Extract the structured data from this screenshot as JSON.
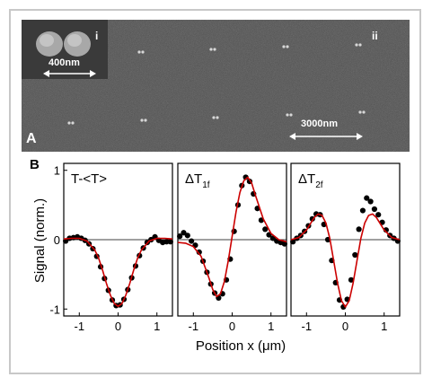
{
  "figure": {
    "panel_a": {
      "label": "A",
      "inset_label": "i",
      "main_label": "ii",
      "inset_scale": "400nm",
      "main_scale": "3000nm"
    },
    "panel_b": {
      "label": "B"
    }
  },
  "chart_data": [
    {
      "type": "line",
      "subplot_title": "T-<T>",
      "ylabel": "Signal (norm.)",
      "xlabel": "Position x (μm)",
      "xlim": [
        -1.4,
        1.4
      ],
      "ylim": [
        -1.1,
        1.1
      ],
      "xticks": [
        -1,
        0,
        1
      ],
      "yticks": [
        -1,
        0,
        1
      ],
      "colors": {
        "points": "#000000",
        "fit": "#cc0000"
      },
      "series": [
        {
          "kind": "points",
          "x": [
            -1.35,
            -1.25,
            -1.15,
            -1.05,
            -0.95,
            -0.85,
            -0.75,
            -0.65,
            -0.55,
            -0.45,
            -0.35,
            -0.25,
            -0.15,
            -0.05,
            0.05,
            0.15,
            0.25,
            0.35,
            0.45,
            0.55,
            0.65,
            0.75,
            0.85,
            0.95,
            1.05,
            1.15,
            1.25,
            1.35
          ],
          "y": [
            -0.02,
            0.02,
            0.03,
            0.04,
            0.02,
            -0.01,
            -0.06,
            -0.13,
            -0.24,
            -0.39,
            -0.56,
            -0.73,
            -0.87,
            -0.95,
            -0.94,
            -0.86,
            -0.72,
            -0.55,
            -0.38,
            -0.23,
            -0.12,
            -0.04,
            0.0,
            0.04,
            -0.01,
            -0.04,
            -0.03,
            -0.03
          ]
        },
        {
          "kind": "fit",
          "x": [
            -1.4,
            -1.2,
            -1.0,
            -0.8,
            -0.6,
            -0.5,
            -0.4,
            -0.3,
            -0.2,
            -0.1,
            0.0,
            0.1,
            0.2,
            0.3,
            0.4,
            0.5,
            0.6,
            0.8,
            1.0,
            1.2,
            1.4
          ],
          "y": [
            0.01,
            0.02,
            0.02,
            -0.02,
            -0.15,
            -0.27,
            -0.44,
            -0.63,
            -0.8,
            -0.92,
            -0.96,
            -0.92,
            -0.8,
            -0.63,
            -0.44,
            -0.27,
            -0.15,
            -0.02,
            0.02,
            0.02,
            0.01
          ]
        }
      ]
    },
    {
      "type": "line",
      "subplot_title": "ΔT",
      "subplot_title_sub": "1f",
      "xlim": [
        -1.4,
        1.4
      ],
      "ylim": [
        -1.1,
        1.1
      ],
      "xticks": [
        -1,
        0,
        1
      ],
      "colors": {
        "points": "#000000",
        "fit": "#cc0000"
      },
      "series": [
        {
          "kind": "points",
          "x": [
            -1.35,
            -1.25,
            -1.15,
            -1.05,
            -0.95,
            -0.85,
            -0.75,
            -0.65,
            -0.55,
            -0.45,
            -0.35,
            -0.25,
            -0.15,
            -0.05,
            0.05,
            0.15,
            0.25,
            0.35,
            0.45,
            0.55,
            0.65,
            0.75,
            0.85,
            0.95,
            1.05,
            1.15,
            1.25,
            1.35
          ],
          "y": [
            0.05,
            0.1,
            0.06,
            -0.02,
            -0.08,
            -0.18,
            -0.31,
            -0.47,
            -0.64,
            -0.77,
            -0.84,
            -0.78,
            -0.58,
            -0.28,
            0.12,
            0.5,
            0.78,
            0.9,
            0.84,
            0.66,
            0.45,
            0.28,
            0.15,
            0.07,
            0.02,
            -0.02,
            -0.04,
            -0.06
          ]
        },
        {
          "kind": "fit",
          "x": [
            -1.4,
            -1.2,
            -1.0,
            -0.8,
            -0.6,
            -0.5,
            -0.4,
            -0.3,
            -0.2,
            -0.1,
            0.0,
            0.1,
            0.2,
            0.3,
            0.4,
            0.5,
            0.6,
            0.8,
            1.0,
            1.2,
            1.4
          ],
          "y": [
            -0.04,
            -0.05,
            -0.1,
            -0.24,
            -0.55,
            -0.72,
            -0.82,
            -0.78,
            -0.6,
            -0.3,
            0.05,
            0.4,
            0.68,
            0.85,
            0.9,
            0.82,
            0.64,
            0.3,
            0.09,
            0.0,
            -0.03
          ]
        }
      ]
    },
    {
      "type": "line",
      "subplot_title": "ΔT",
      "subplot_title_sub": "2f",
      "xlim": [
        -1.4,
        1.4
      ],
      "ylim": [
        -1.1,
        1.1
      ],
      "xticks": [
        -1,
        0,
        1
      ],
      "colors": {
        "points": "#000000",
        "fit": "#cc0000"
      },
      "series": [
        {
          "kind": "points",
          "x": [
            -1.35,
            -1.25,
            -1.15,
            -1.05,
            -0.95,
            -0.85,
            -0.75,
            -0.65,
            -0.55,
            -0.45,
            -0.35,
            -0.25,
            -0.15,
            -0.05,
            0.05,
            0.15,
            0.25,
            0.35,
            0.45,
            0.55,
            0.65,
            0.75,
            0.85,
            0.95,
            1.05,
            1.15,
            1.25,
            1.35
          ],
          "y": [
            -0.03,
            0.02,
            0.06,
            0.12,
            0.2,
            0.3,
            0.37,
            0.36,
            0.22,
            0.0,
            -0.3,
            -0.62,
            -0.87,
            -0.97,
            -0.86,
            -0.58,
            -0.22,
            0.15,
            0.42,
            0.6,
            0.55,
            0.44,
            0.36,
            0.25,
            0.14,
            0.06,
            0.02,
            -0.02
          ]
        },
        {
          "kind": "fit",
          "x": [
            -1.4,
            -1.2,
            -1.0,
            -0.8,
            -0.7,
            -0.6,
            -0.5,
            -0.4,
            -0.3,
            -0.2,
            -0.1,
            0.0,
            0.1,
            0.2,
            0.3,
            0.4,
            0.5,
            0.6,
            0.7,
            0.8,
            1.0,
            1.2,
            1.4
          ],
          "y": [
            0.0,
            0.03,
            0.14,
            0.32,
            0.37,
            0.35,
            0.24,
            0.02,
            -0.3,
            -0.63,
            -0.88,
            -0.97,
            -0.88,
            -0.63,
            -0.3,
            0.02,
            0.24,
            0.35,
            0.37,
            0.32,
            0.14,
            0.03,
            0.0
          ]
        }
      ]
    }
  ]
}
